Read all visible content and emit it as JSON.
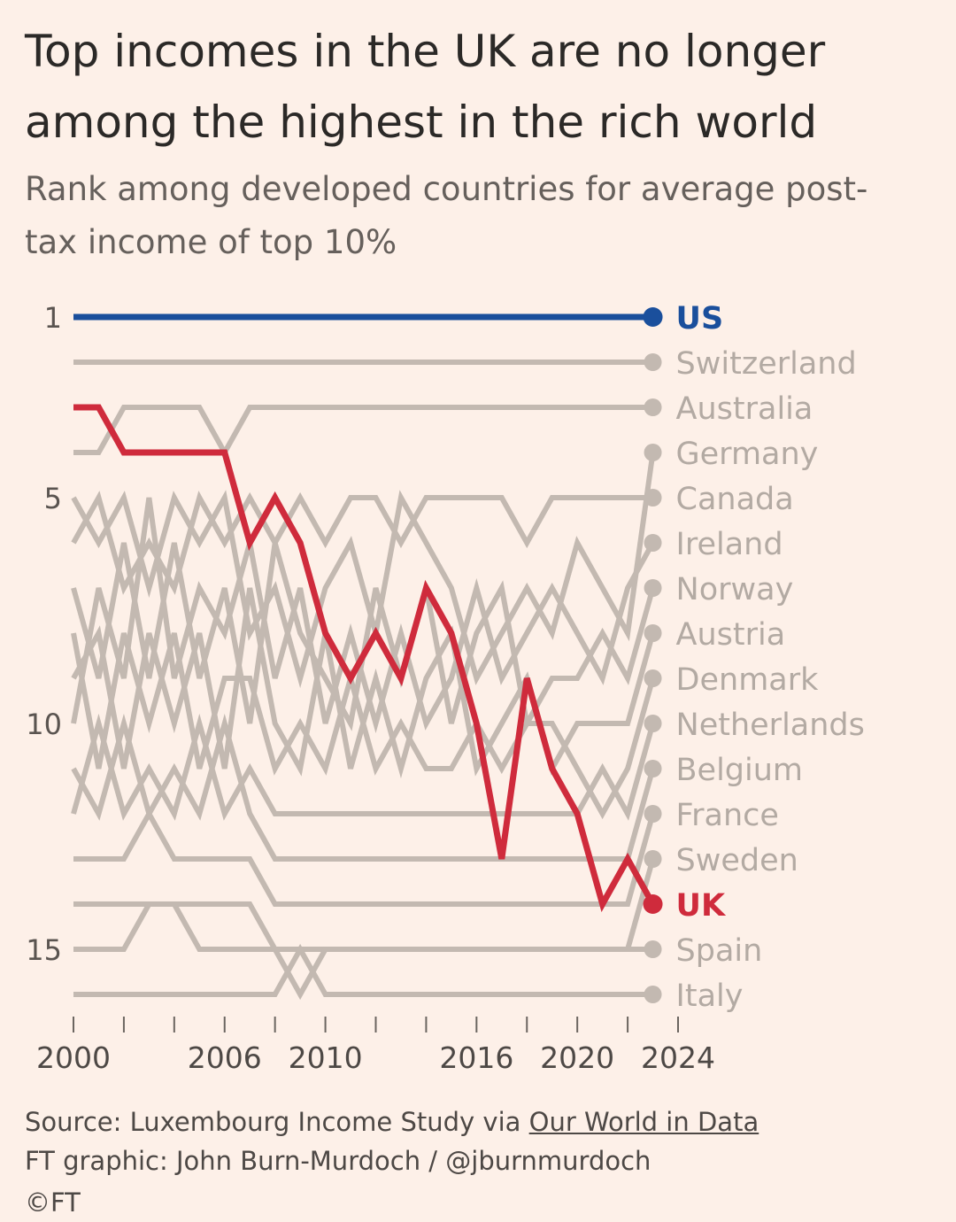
{
  "header": {
    "title": "Top incomes in the UK are no longer among the highest in the rich world",
    "subtitle": "Rank among developed countries for average post-tax income of top 10%"
  },
  "footer": {
    "source_prefix": "Source: Luxembourg Income Study via ",
    "source_link": "Our World in Data",
    "credit": "FT graphic: John Burn-Murdoch / @jburnmurdoch",
    "cut_text": "©FT"
  },
  "colors": {
    "background": "#fdf0e8",
    "us": "#1a4f9c",
    "uk": "#cf2b3c",
    "others": "#c3b9b1",
    "label_gray": "#b3aaa3"
  },
  "chart_data": {
    "type": "line",
    "title": "Top incomes in the UK are no longer among the highest in the rich world",
    "subtitle": "Rank among developed countries for average post-tax income of top 10%",
    "x": [
      2000,
      2001,
      2002,
      2003,
      2004,
      2005,
      2006,
      2007,
      2008,
      2009,
      2010,
      2011,
      2012,
      2013,
      2014,
      2015,
      2016,
      2017,
      2018,
      2019,
      2020,
      2021,
      2022,
      2023
    ],
    "x_range": [
      2000,
      2024
    ],
    "x_tick_values": [
      2000,
      2002,
      2004,
      2006,
      2008,
      2010,
      2012,
      2014,
      2016,
      2018,
      2020,
      2022,
      2024
    ],
    "x_tick_labels": [
      "2000",
      "2006",
      "2010",
      "2016",
      "2020",
      "2024"
    ],
    "x_tick_label_values": [
      2000,
      2006,
      2010,
      2016,
      2020,
      2024
    ],
    "y_range": [
      1,
      16
    ],
    "y_inverted": true,
    "y_tick_labels": [
      "1",
      "5",
      "10",
      "15"
    ],
    "y_tick_values": [
      1,
      5,
      10,
      15
    ],
    "series": [
      {
        "name": "US",
        "highlight": "us",
        "values": [
          1,
          1,
          1,
          1,
          1,
          1,
          1,
          1,
          1,
          1,
          1,
          1,
          1,
          1,
          1,
          1,
          1,
          1,
          1,
          1,
          1,
          1,
          1,
          1
        ]
      },
      {
        "name": "Switzerland",
        "highlight": "none",
        "values": [
          2,
          2,
          2,
          2,
          2,
          2,
          2,
          2,
          2,
          2,
          2,
          2,
          2,
          2,
          2,
          2,
          2,
          2,
          2,
          2,
          2,
          2,
          2,
          2
        ]
      },
      {
        "name": "Australia",
        "highlight": "none",
        "values": [
          4,
          4,
          3,
          3,
          3,
          3,
          4,
          3,
          3,
          3,
          3,
          3,
          3,
          3,
          3,
          3,
          3,
          3,
          3,
          3,
          3,
          3,
          3,
          3
        ]
      },
      {
        "name": "Germany",
        "highlight": "none",
        "values": [
          5,
          6,
          5,
          7,
          5,
          6,
          5,
          8,
          7,
          9,
          7,
          6,
          8,
          5,
          6,
          7,
          9,
          8,
          7,
          8,
          6,
          7,
          8,
          4
        ]
      },
      {
        "name": "Canada",
        "highlight": "none",
        "values": [
          6,
          5,
          7,
          6,
          7,
          5,
          6,
          5,
          6,
          5,
          6,
          5,
          5,
          6,
          5,
          5,
          5,
          5,
          6,
          5,
          5,
          5,
          5,
          5
        ]
      },
      {
        "name": "Ireland",
        "highlight": "none",
        "values": [
          10,
          7,
          9,
          5,
          9,
          7,
          8,
          6,
          9,
          7,
          10,
          8,
          10,
          8,
          10,
          9,
          7,
          9,
          8,
          7,
          8,
          9,
          7,
          6
        ]
      },
      {
        "name": "Norway",
        "highlight": "none",
        "values": [
          7,
          9,
          6,
          9,
          6,
          9,
          7,
          10,
          6,
          8,
          9,
          10,
          7,
          9,
          7,
          10,
          8,
          7,
          10,
          9,
          9,
          8,
          9,
          7
        ]
      },
      {
        "name": "Austria",
        "highlight": "none",
        "values": [
          9,
          8,
          11,
          8,
          10,
          8,
          11,
          7,
          10,
          11,
          8,
          11,
          9,
          11,
          9,
          8,
          11,
          10,
          9,
          11,
          10,
          10,
          10,
          8
        ]
      },
      {
        "name": "Denmark",
        "highlight": "none",
        "values": [
          8,
          11,
          8,
          10,
          8,
          11,
          9,
          9,
          11,
          10,
          11,
          9,
          11,
          10,
          11,
          11,
          10,
          11,
          10,
          10,
          11,
          12,
          11,
          9
        ]
      },
      {
        "name": "Netherlands",
        "highlight": "none",
        "values": [
          12,
          10,
          12,
          11,
          12,
          10,
          12,
          11,
          12,
          12,
          12,
          12,
          12,
          12,
          12,
          12,
          12,
          12,
          12,
          12,
          12,
          11,
          12,
          10
        ]
      },
      {
        "name": "Belgium",
        "highlight": "none",
        "values": [
          11,
          12,
          10,
          12,
          11,
          12,
          10,
          12,
          13,
          13,
          13,
          13,
          13,
          13,
          13,
          13,
          13,
          13,
          13,
          13,
          13,
          13,
          13,
          11
        ]
      },
      {
        "name": "France",
        "highlight": "none",
        "values": [
          13,
          13,
          13,
          12,
          13,
          13,
          13,
          13,
          14,
          14,
          14,
          14,
          14,
          14,
          14,
          14,
          14,
          14,
          14,
          14,
          14,
          14,
          14,
          12
        ]
      },
      {
        "name": "Sweden",
        "highlight": "none",
        "values": [
          14,
          14,
          14,
          14,
          14,
          14,
          14,
          14,
          15,
          15,
          15,
          15,
          15,
          15,
          15,
          15,
          15,
          15,
          15,
          15,
          15,
          15,
          15,
          13
        ]
      },
      {
        "name": "UK",
        "highlight": "uk",
        "values": [
          3,
          3,
          4,
          4,
          4,
          4,
          4,
          6,
          5,
          6,
          8,
          9,
          8,
          9,
          7,
          8,
          10,
          13,
          9,
          11,
          12,
          14,
          13,
          14
        ]
      },
      {
        "name": "Spain",
        "highlight": "none",
        "values": [
          15,
          15,
          15,
          14,
          14,
          15,
          15,
          15,
          15,
          16,
          15,
          15,
          15,
          15,
          15,
          15,
          15,
          15,
          15,
          15,
          15,
          15,
          15,
          15
        ]
      },
      {
        "name": "Italy",
        "highlight": "none",
        "values": [
          16,
          16,
          16,
          16,
          16,
          16,
          16,
          16,
          16,
          15,
          16,
          16,
          16,
          16,
          16,
          16,
          16,
          16,
          16,
          16,
          16,
          16,
          16,
          16
        ]
      }
    ]
  }
}
